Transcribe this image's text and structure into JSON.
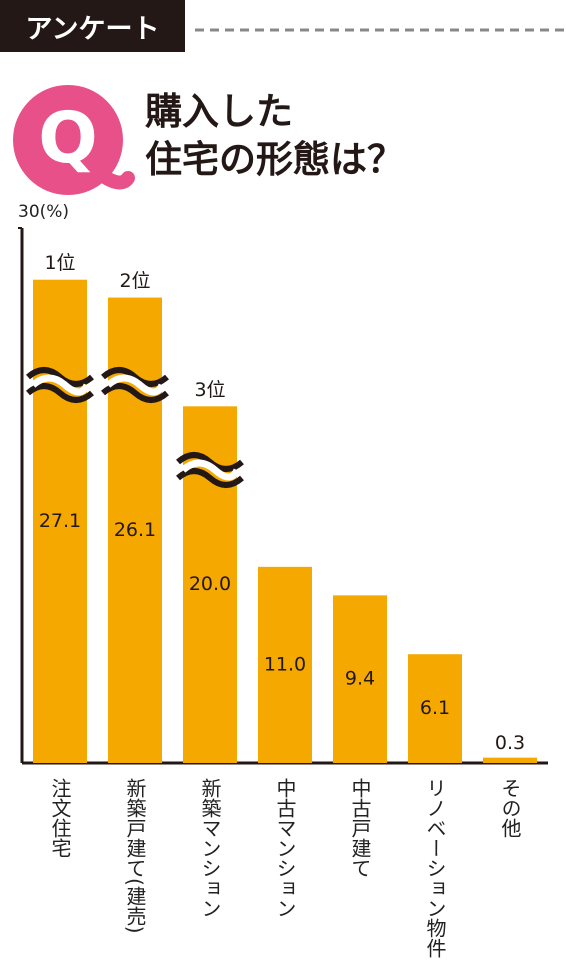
{
  "header": {
    "label": "アンケート",
    "badge": "Q",
    "title": [
      "購入した",
      "住宅の形態は？"
    ]
  },
  "chart_data": {
    "type": "bar",
    "categories": [
      "注文住宅",
      "新築戸建て(建売)",
      "新築マンション",
      "中古マンション",
      "中古戸建て",
      "リノベーション物件",
      "その他"
    ],
    "values": [
      27.1,
      26.1,
      20.0,
      11.0,
      9.4,
      6.1,
      0.3
    ],
    "value_labels": [
      "27.1",
      "26.1",
      "20.0",
      "11.0",
      "9.4",
      "6.1",
      "0.3"
    ],
    "annotations": [
      "1位",
      "2位",
      "3位"
    ],
    "color": "#f5a800",
    "ylim": [
      0,
      30
    ],
    "yticks": [
      {
        "value": 30,
        "label": "30(%)"
      }
    ]
  }
}
